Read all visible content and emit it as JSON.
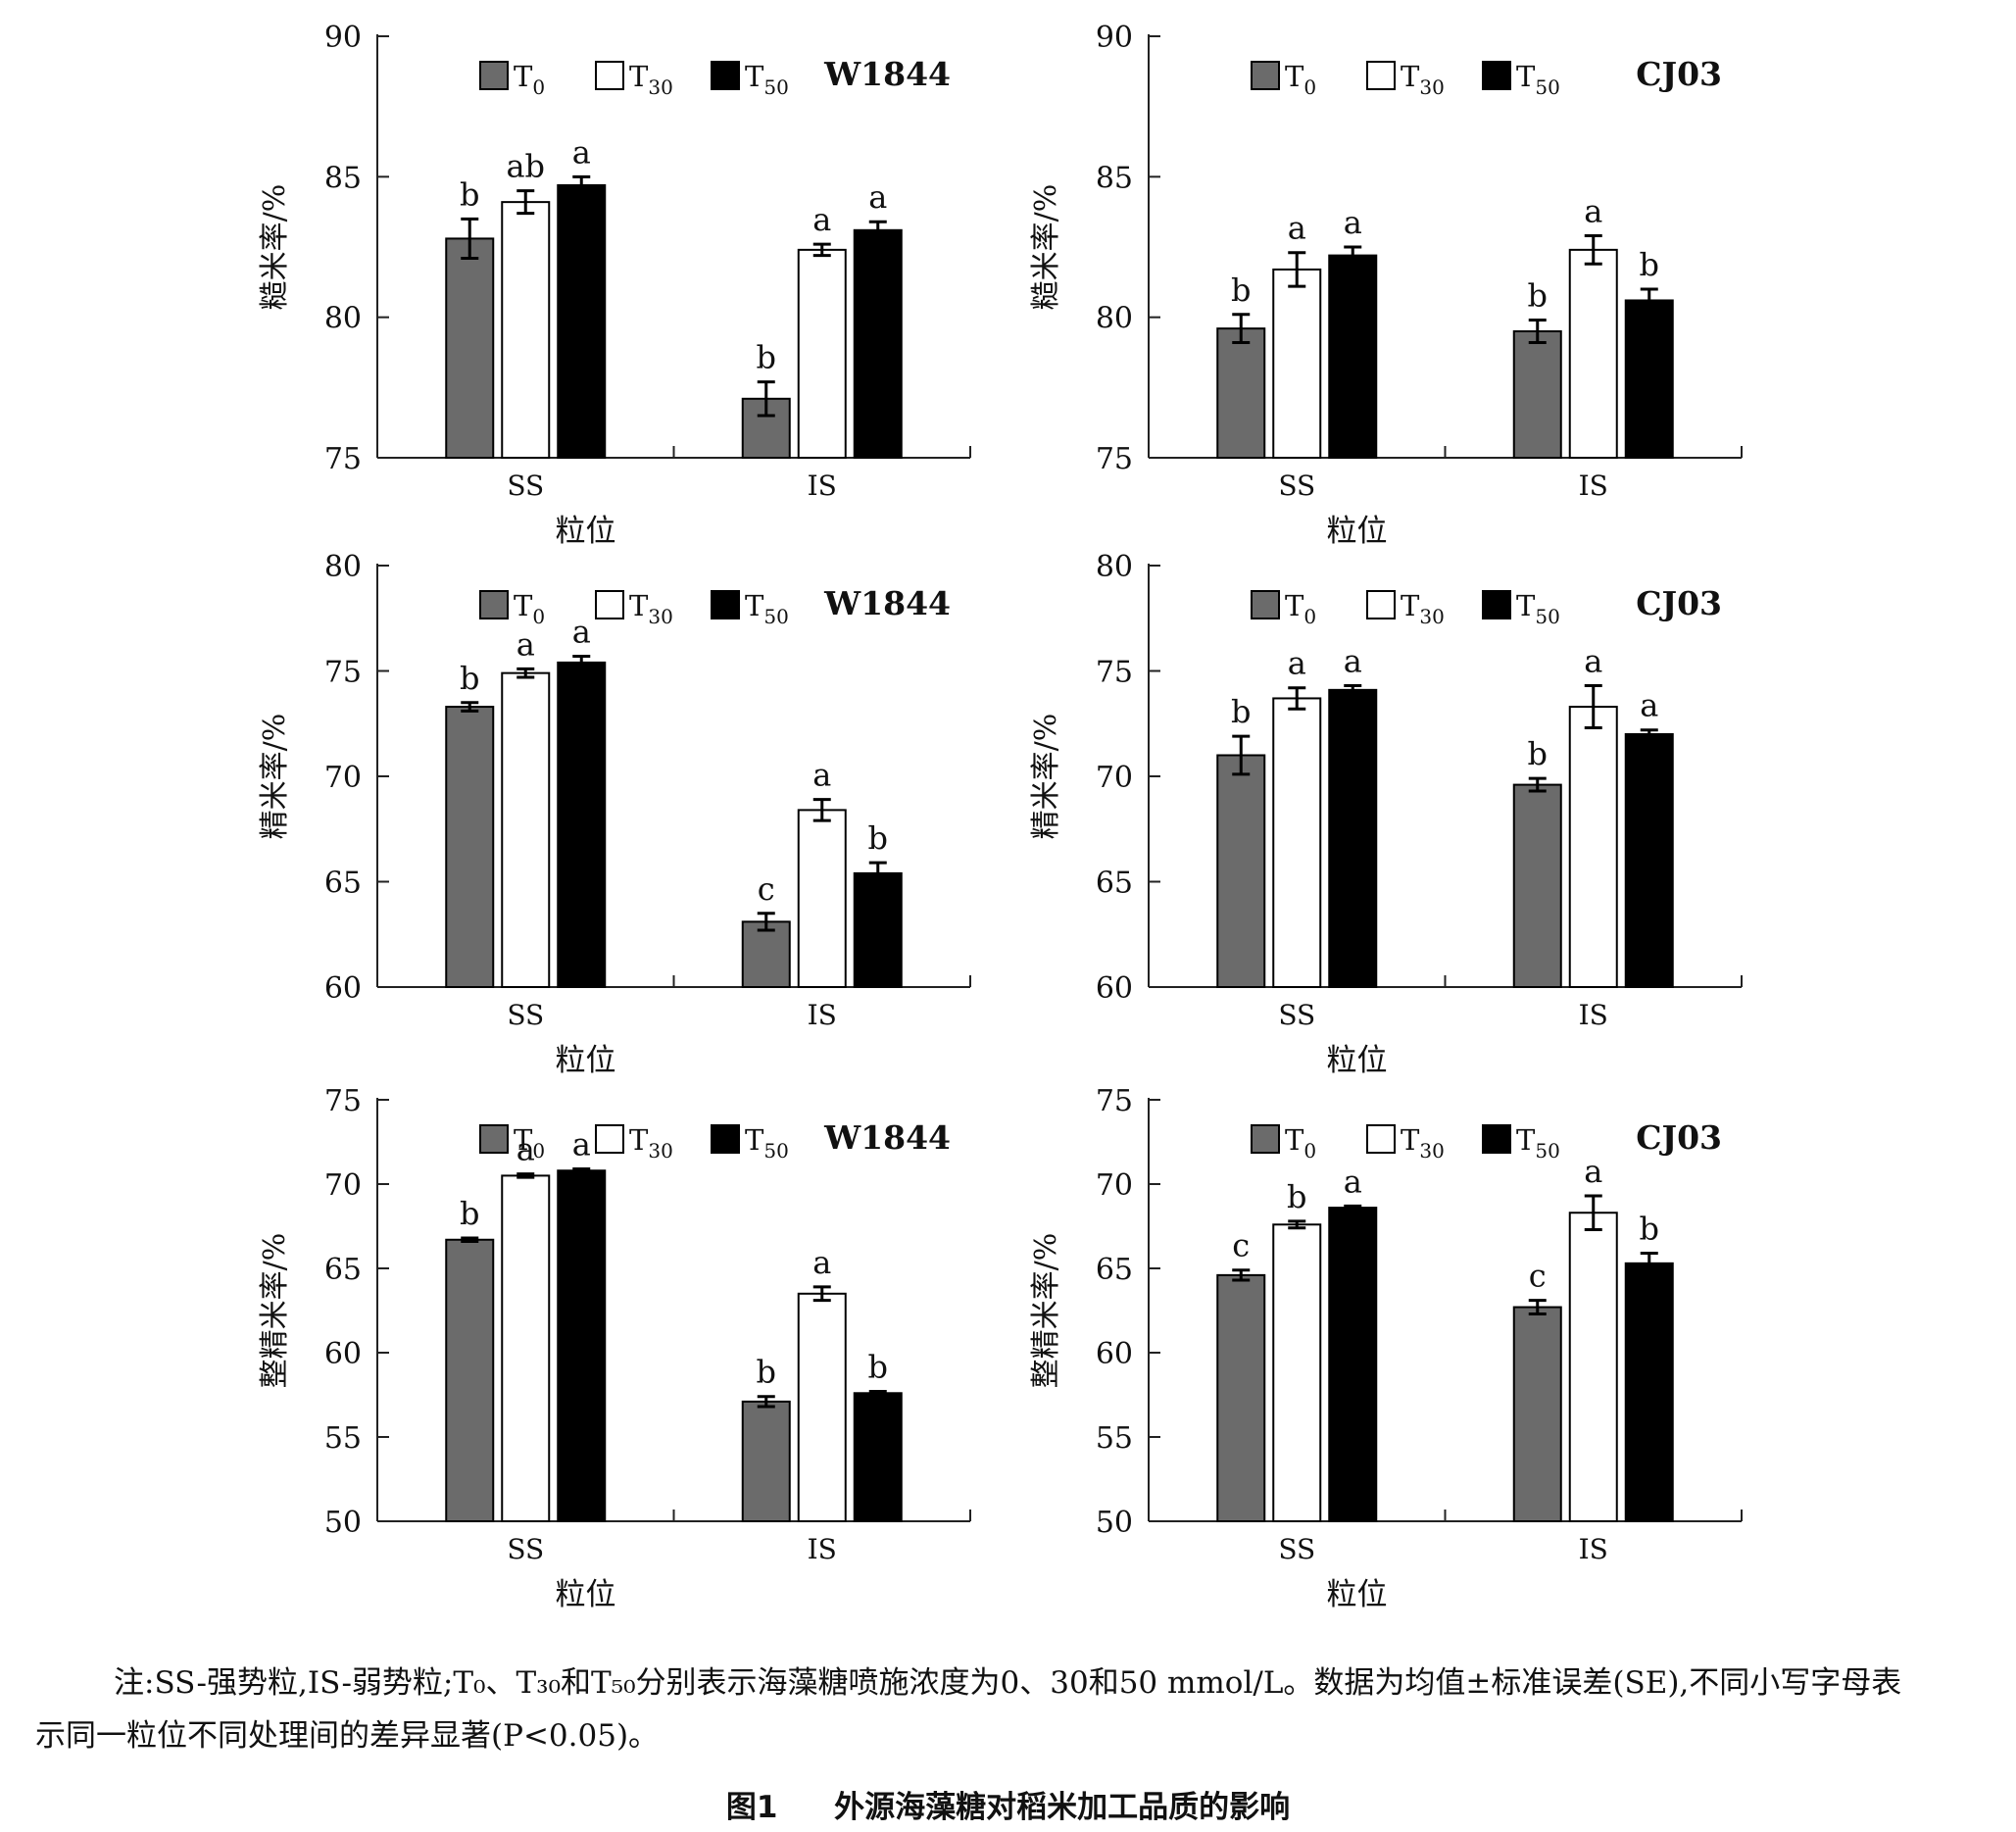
{
  "chart_data": [
    {
      "type": "bar",
      "label": "W1844",
      "categories": [
        "SS",
        "IS"
      ],
      "xlabel": "粒位",
      "ylabel": "糙米率/%",
      "ylim": [
        75,
        90
      ],
      "yticks": [
        75,
        80,
        85,
        90
      ],
      "legend_position": "top-left",
      "series": [
        {
          "name": "T0",
          "values": [
            82.8,
            77.1
          ],
          "errors": [
            0.7,
            0.6
          ],
          "letters": [
            "b",
            "b"
          ]
        },
        {
          "name": "T30",
          "values": [
            84.1,
            82.4
          ],
          "errors": [
            0.4,
            0.2
          ],
          "letters": [
            "ab",
            "a"
          ]
        },
        {
          "name": "T50",
          "values": [
            84.7,
            83.1
          ],
          "errors": [
            0.3,
            0.3
          ],
          "letters": [
            "a",
            "a"
          ]
        }
      ]
    },
    {
      "type": "bar",
      "label": "CJ03",
      "categories": [
        "SS",
        "IS"
      ],
      "xlabel": "粒位",
      "ylabel": "糙米率/%",
      "ylim": [
        75,
        90
      ],
      "yticks": [
        75,
        80,
        85,
        90
      ],
      "legend_position": "top-left",
      "series": [
        {
          "name": "T0",
          "values": [
            79.6,
            79.5
          ],
          "errors": [
            0.5,
            0.4
          ],
          "letters": [
            "b",
            "b"
          ]
        },
        {
          "name": "T30",
          "values": [
            81.7,
            82.4
          ],
          "errors": [
            0.6,
            0.5
          ],
          "letters": [
            "a",
            "a"
          ]
        },
        {
          "name": "T50",
          "values": [
            82.2,
            80.6
          ],
          "errors": [
            0.3,
            0.4
          ],
          "letters": [
            "a",
            "b"
          ]
        }
      ]
    },
    {
      "type": "bar",
      "label": "W1844",
      "categories": [
        "SS",
        "IS"
      ],
      "xlabel": "粒位",
      "ylabel": "精米率/%",
      "ylim": [
        60,
        80
      ],
      "yticks": [
        60,
        65,
        70,
        75,
        80
      ],
      "legend_position": "top-left",
      "series": [
        {
          "name": "T0",
          "values": [
            73.3,
            63.1
          ],
          "errors": [
            0.2,
            0.4
          ],
          "letters": [
            "b",
            "c"
          ]
        },
        {
          "name": "T30",
          "values": [
            74.9,
            68.4
          ],
          "errors": [
            0.2,
            0.5
          ],
          "letters": [
            "a",
            "a"
          ]
        },
        {
          "name": "T50",
          "values": [
            75.4,
            65.4
          ],
          "errors": [
            0.3,
            0.5
          ],
          "letters": [
            "a",
            "b"
          ]
        }
      ]
    },
    {
      "type": "bar",
      "label": "CJ03",
      "categories": [
        "SS",
        "IS"
      ],
      "xlabel": "粒位",
      "ylabel": "精米率/%",
      "ylim": [
        60,
        80
      ],
      "yticks": [
        60,
        65,
        70,
        75,
        80
      ],
      "legend_position": "top-left",
      "series": [
        {
          "name": "T0",
          "values": [
            71.0,
            69.6
          ],
          "errors": [
            0.9,
            0.3
          ],
          "letters": [
            "b",
            "b"
          ]
        },
        {
          "name": "T30",
          "values": [
            73.7,
            73.3
          ],
          "errors": [
            0.5,
            1.0
          ],
          "letters": [
            "a",
            "a"
          ]
        },
        {
          "name": "T50",
          "values": [
            74.1,
            72.0
          ],
          "errors": [
            0.2,
            0.2
          ],
          "letters": [
            "a",
            "a"
          ]
        }
      ]
    },
    {
      "type": "bar",
      "label": "W1844",
      "categories": [
        "SS",
        "IS"
      ],
      "xlabel": "粒位",
      "ylabel": "整精米率/%",
      "ylim": [
        50,
        75
      ],
      "yticks": [
        50,
        55,
        60,
        65,
        70,
        75
      ],
      "legend_position": "top-left",
      "series": [
        {
          "name": "T0",
          "values": [
            66.7,
            57.1
          ],
          "errors": [
            0.1,
            0.3
          ],
          "letters": [
            "b",
            "b"
          ]
        },
        {
          "name": "T30",
          "values": [
            70.5,
            63.5
          ],
          "errors": [
            0.1,
            0.4
          ],
          "letters": [
            "a",
            "a"
          ]
        },
        {
          "name": "T50",
          "values": [
            70.8,
            57.6
          ],
          "errors": [
            0.1,
            0.1
          ],
          "letters": [
            "a",
            "b"
          ]
        }
      ]
    },
    {
      "type": "bar",
      "label": "CJ03",
      "categories": [
        "SS",
        "IS"
      ],
      "xlabel": "粒位",
      "ylabel": "整精米率/%",
      "ylim": [
        50,
        75
      ],
      "yticks": [
        50,
        55,
        60,
        65,
        70,
        75
      ],
      "legend_position": "top-left",
      "series": [
        {
          "name": "T0",
          "values": [
            64.6,
            62.7
          ],
          "errors": [
            0.3,
            0.4
          ],
          "letters": [
            "c",
            "c"
          ]
        },
        {
          "name": "T30",
          "values": [
            67.6,
            68.3
          ],
          "errors": [
            0.2,
            1.0
          ],
          "letters": [
            "b",
            "a"
          ]
        },
        {
          "name": "T50",
          "values": [
            68.6,
            65.3
          ],
          "errors": [
            0.1,
            0.6
          ],
          "letters": [
            "a",
            "b"
          ]
        }
      ]
    }
  ],
  "colors": {
    "T0": "#6b6b6b",
    "T30": "#ffffff",
    "T50": "#000000"
  },
  "note": {
    "line1": "注:SS-强势粒,IS-弱势粒;T₀、T₃₀和T₅₀分别表示海藻糖喷施浓度为0、30和50 mmol/L。数据为均值±标准误差(SE),不同小写字母表",
    "line2": "示同一粒位不同处理间的差异显著(P<0.05)。"
  },
  "caption": {
    "number": "图1",
    "title": "外源海藻糖对稻米加工品质的影响"
  }
}
